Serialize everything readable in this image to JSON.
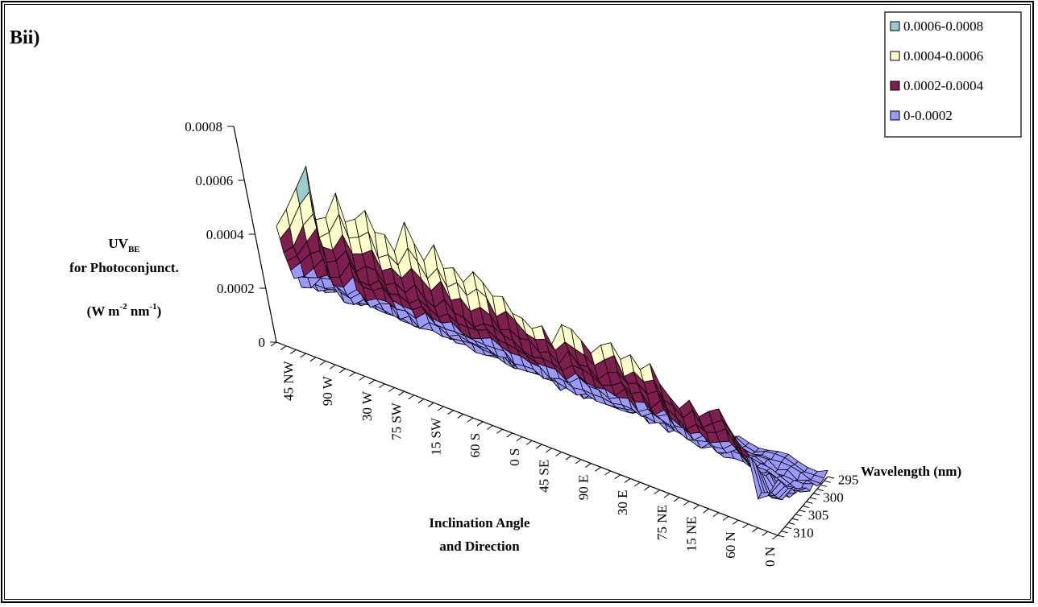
{
  "panel_label": "Bii)",
  "chart_data": {
    "type": "surface",
    "z_axis": {
      "label_main": "UV",
      "label_sub": "BE",
      "label_line2": "for Photoconjunct.",
      "label_unit_open": "(W m",
      "label_unit_exp1": "-2",
      "label_unit_mid": " nm",
      "label_unit_exp2": "-1",
      "label_unit_close": ")",
      "ticks": [
        "0",
        "0.0002",
        "0.0004",
        "0.0006",
        "0.0008"
      ],
      "range": [
        0,
        0.0008
      ]
    },
    "x_axis": {
      "label_line1": "Inclination Angle",
      "label_line2": "and Direction",
      "tick_labels": [
        "45 NW",
        "90 W",
        "30 W",
        "75 SW",
        "15 SW",
        "60 S",
        "0 S",
        "45 SE",
        "90 E",
        "30 E",
        "75 NE",
        "15 NE",
        "60 N",
        "0 N"
      ]
    },
    "y_axis": {
      "label": "Wavelength (nm)",
      "tick_labels": [
        "295",
        "300",
        "305",
        "310"
      ]
    },
    "legend": {
      "position": "top-right",
      "entries": [
        {
          "label": "0.0006-0.0008",
          "color": "#99cccc"
        },
        {
          "label": "0.0004-0.0006",
          "color": "#ffffcc"
        },
        {
          "label": "0.0002-0.0004",
          "color": "#7f1f4f"
        },
        {
          "label": "0-0.0002",
          "color": "#9999ff"
        }
      ]
    },
    "ridge_profile_295nm": [
      0.00045,
      0.0005,
      0.00062,
      0.0007,
      0.00052,
      0.00054,
      0.00064,
      0.00056,
      0.00058,
      0.00062,
      0.00054,
      0.00055,
      0.00052,
      0.00062,
      0.00056,
      0.00052,
      0.00058,
      0.00052,
      0.00053,
      0.0005,
      0.00054,
      0.00052,
      0.00048,
      0.0005,
      0.00046,
      0.00045,
      0.00042,
      0.00046,
      0.0004,
      0.00048,
      0.00046,
      0.00044,
      0.00042,
      0.00046,
      0.00049,
      0.00043,
      0.00045,
      0.00041,
      0.00046,
      0.00039,
      0.00036,
      0.00032,
      0.00038,
      0.00034,
      0.00036,
      0.00038,
      0.00034,
      0.00029,
      0.00027,
      0.00012,
      0.00014,
      0.00022
    ]
  }
}
